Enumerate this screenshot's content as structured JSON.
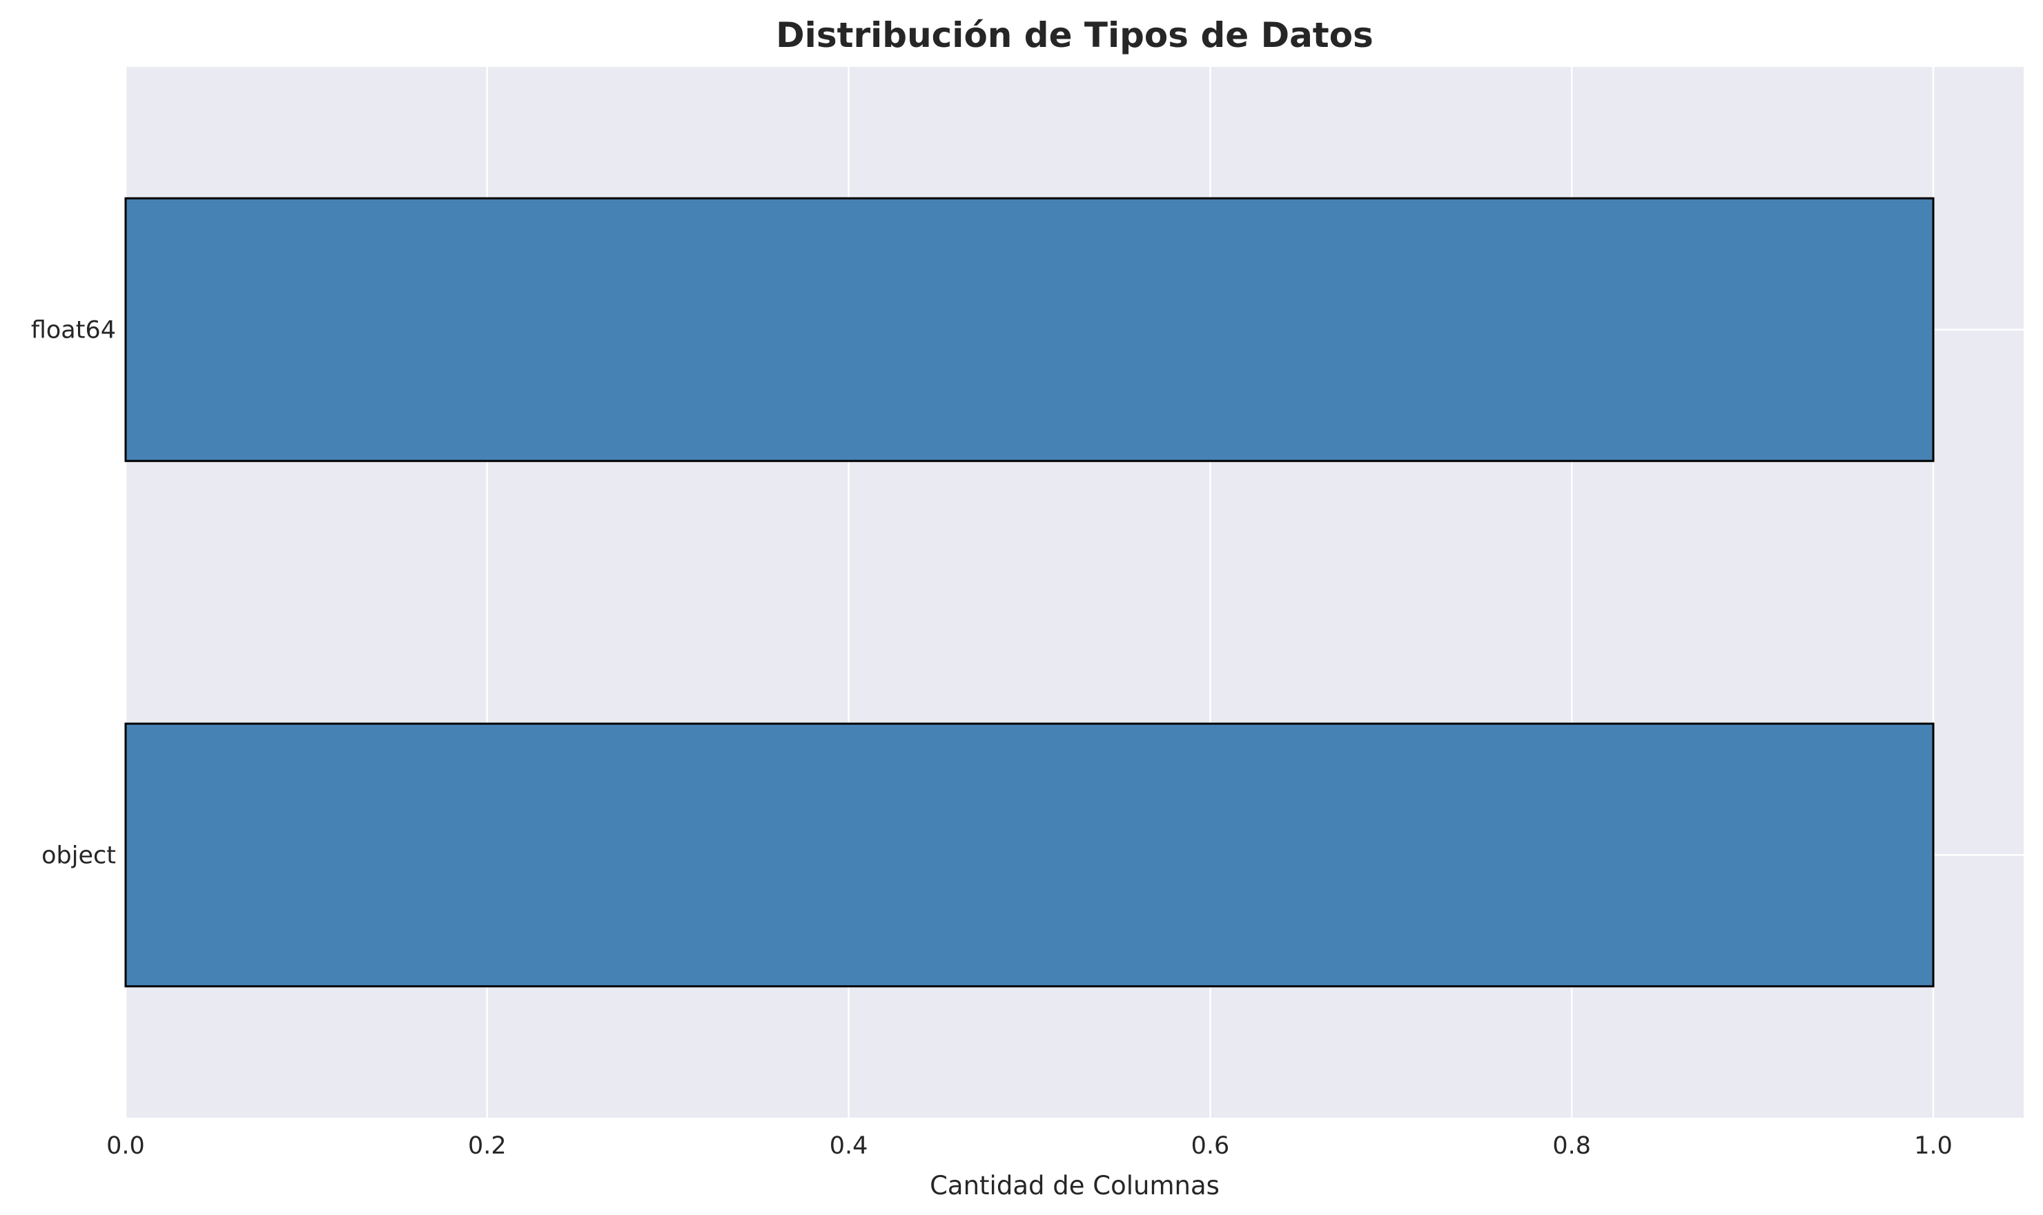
{
  "chart_data": {
    "type": "bar",
    "orientation": "horizontal",
    "title": "Distribución de Tipos de Datos",
    "xlabel": "Cantidad de Columnas",
    "ylabel": "",
    "categories": [
      "object",
      "float64"
    ],
    "values": [
      1,
      1
    ],
    "xlim": [
      0,
      1.05
    ],
    "xticks": [
      0.0,
      0.2,
      0.4,
      0.6,
      0.8,
      1.0
    ],
    "xtick_labels": [
      "0.0",
      "0.2",
      "0.4",
      "0.6",
      "0.8",
      "1.0"
    ],
    "grid": true,
    "legend": "none",
    "colors": {
      "bar_fill": "#4682b4",
      "bar_edge": "#000000",
      "plot_background": "#eaeaf2",
      "grid": "#ffffff",
      "text": "#262626"
    }
  }
}
